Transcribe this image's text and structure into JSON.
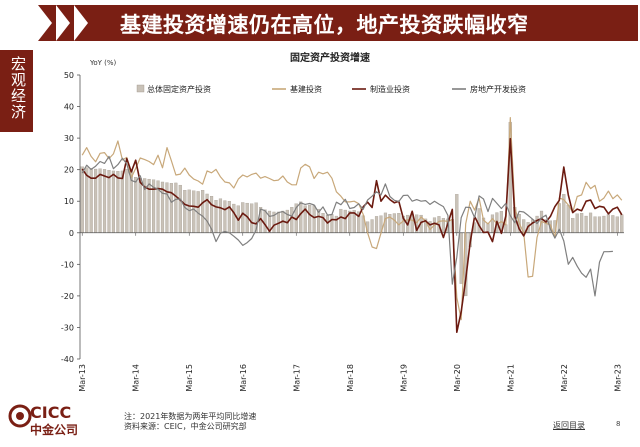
{
  "header": {
    "title": "基建投资增速仍在高位，地产投资跌幅收窄"
  },
  "sidebar": {
    "label": "宏观经济"
  },
  "footer": {
    "note_line1": "注：2021年数据为两年平均同比增速",
    "note_line2": "资料来源：CEIC，中金公司研究部",
    "back_link": "返回目录",
    "page_number": "8"
  },
  "logo": {
    "text": "CICC",
    "subtext": "中金公司"
  },
  "colors": {
    "brand": "#7a1f14",
    "bar": "#c9c2b8",
    "infra": "#c8a87a",
    "manufacturing": "#6b1a10",
    "realestate": "#7f7f7f"
  },
  "chart_data": {
    "type": "bar+line",
    "title": "固定资产投资增速",
    "ylabel": "YoY (%)",
    "ylim": [
      -40,
      50
    ],
    "yticks": [
      -40,
      -30,
      -20,
      -10,
      0,
      10,
      20,
      30,
      40,
      50
    ],
    "xlabels": [
      "Mar-13",
      "Mar-14",
      "Mar-15",
      "Mar-16",
      "Mar-17",
      "Mar-18",
      "Mar-19",
      "Mar-20",
      "Mar-21",
      "Mar-22",
      "Mar-23"
    ],
    "legend": [
      "总体固定资产投资",
      "基建投资",
      "制造业投资",
      "房地产开发投资"
    ],
    "series": [
      {
        "name": "总体固定资产投资",
        "type": "bar",
        "values": [
          20.9,
          20.6,
          20.4,
          20.2,
          20.3,
          20.1,
          19.8,
          19.6,
          19.5,
          19.6,
          20.1,
          19.8,
          17.6,
          17.3,
          17.2,
          17.0,
          16.8,
          16.5,
          16.1,
          15.9,
          15.7,
          15.8,
          15.1,
          13.5,
          13.6,
          13.3,
          13.1,
          13.5,
          12.3,
          11.6,
          10.3,
          10.8,
          10.2,
          10.0,
          9.1,
          8.6,
          9.6,
          9.4,
          9.2,
          9.5,
          8.1,
          7.3,
          6.9,
          6.6,
          6.6,
          6.9,
          7.2,
          8.1,
          9.2,
          9.8,
          8.6,
          8.8,
          8.6,
          7.5,
          6.2,
          5.6,
          5.8,
          5.3,
          7.5,
          7.2,
          6.9,
          7.1,
          6.7,
          5.4,
          3.5,
          4.2,
          5.2,
          5.4,
          6.3,
          5.9,
          6.1,
          6.2,
          5.3,
          5.6,
          5.8,
          5.7,
          5.6,
          4.4,
          3.6,
          4.8,
          5.2,
          4.6,
          4.4,
          4.3,
          12.2,
          -16.1,
          -20.0,
          -4.5,
          3.2,
          7.7,
          4.7,
          2.9,
          5.7,
          6.4,
          6.8,
          2.6,
          35.0,
          8.1,
          5.9,
          4.2,
          3.3,
          4.2,
          5.3,
          6.9,
          4.2,
          3.8,
          3.9,
          9.3,
          12.2,
          8.8,
          4.6,
          6.0,
          6.2,
          5.3,
          6.3,
          5.1,
          5.1,
          5.3,
          5.8,
          5.5,
          5.1,
          5.7
        ],
        "bar_start": 0
      },
      {
        "name": "基建投资",
        "type": "line",
        "values": [
          24.6,
          27.0,
          24.2,
          22.5,
          25.2,
          25.4,
          23.5,
          25.0,
          29.1,
          23.1,
          23.9,
          17.5,
          20.4,
          23.7,
          23.2,
          22.6,
          21.6,
          24.6,
          20.6,
          27.0,
          22.8,
          18.3,
          18.6,
          20.5,
          18.3,
          17.0,
          16.4,
          15.4,
          19.6,
          19.0,
          20.1,
          17.7,
          16.1,
          15.8,
          14.2,
          17.0,
          18.3,
          17.7,
          18.5,
          18.9,
          17.3,
          17.8,
          17.2,
          16.5,
          16.7,
          18.0,
          16.1,
          15.2,
          15.2,
          20.5,
          21.7,
          20.9,
          17.2,
          19.2,
          18.7,
          19.2,
          17.3,
          13.0,
          11.6,
          9.8,
          9.8,
          10.0,
          9.2,
          5.9,
          0.0,
          -4.5,
          -5.0,
          -0.1,
          4.5,
          5.0,
          4.0,
          2.5,
          3.8,
          4.1,
          4.0,
          3.2,
          5.0,
          3.7,
          1.0,
          2.5,
          3.6,
          3.8,
          3.6,
          4.2,
          -20.5,
          -27.5,
          2.8,
          10.0,
          7.2,
          11.0,
          4.0,
          2.8,
          4.5,
          2.8,
          3.5,
          2.5,
          36.5,
          8.0,
          3.0,
          0.0,
          -14.0,
          -13.8,
          -1.5,
          3.6,
          3.0,
          2.5,
          -1.5,
          11.0,
          10.5,
          8.8,
          6.5,
          11.5,
          12.0,
          16.0,
          14.0,
          15.0,
          10.0,
          11.0,
          13.2,
          10.8,
          12.0,
          10.3
        ]
      },
      {
        "name": "制造业投资",
        "type": "line",
        "values": [
          20.2,
          18.2,
          17.3,
          17.3,
          18.5,
          18.0,
          17.5,
          18.5,
          17.4,
          17.2,
          23.5,
          19.3,
          23.0,
          16.0,
          14.5,
          13.8,
          13.8,
          14.0,
          13.8,
          13.0,
          12.7,
          11.6,
          10.4,
          9.0,
          8.5,
          8.4,
          8.1,
          9.5,
          10.5,
          8.9,
          8.2,
          7.9,
          7.3,
          8.2,
          6.4,
          4.0,
          6.2,
          5.1,
          3.2,
          2.8,
          4.5,
          2.6,
          0.5,
          2.4,
          3.0,
          3.7,
          3.2,
          5.0,
          4.2,
          6.0,
          7.5,
          5.8,
          4.8,
          5.2,
          4.8,
          3.1,
          4.2,
          4.1,
          5.0,
          4.5,
          6.3,
          6.3,
          5.2,
          8.2,
          9.7,
          8.0,
          16.5,
          10.0,
          11.9,
          10.5,
          9.5,
          10.0,
          4.6,
          2.5,
          6.8,
          0.8,
          3.3,
          3.8,
          2.5,
          3.0,
          2.5,
          -1.5,
          3.0,
          7.4,
          -31.5,
          -25.0,
          -14.8,
          -3.0,
          5.2,
          2.3,
          0.1,
          0.2,
          -2.8,
          3.6,
          -0.2,
          5.3,
          29.8,
          5.2,
          1.2,
          -1.0,
          2.0,
          3.1,
          3.9,
          4.5,
          3.4,
          5.2,
          8.3,
          10.3,
          20.8,
          12.0,
          6.4,
          7.5,
          7.0,
          10.0,
          10.4,
          7.7,
          8.4,
          8.1,
          6.0,
          7.5,
          8.1,
          5.7
        ]
      },
      {
        "name": "房地产开发投资",
        "type": "line",
        "values": [
          18.9,
          21.4,
          20.1,
          21.1,
          22.6,
          22.0,
          24.2,
          20.3,
          21.6,
          23.6,
          21.8,
          16.6,
          16.1,
          18.1,
          13.7,
          15.5,
          14.4,
          13.8,
          12.5,
          12.3,
          9.7,
          10.6,
          10.7,
          8.0,
          7.0,
          7.5,
          6.2,
          5.3,
          3.7,
          1.2,
          -2.8,
          -0.1,
          0.4,
          0.0,
          -1.1,
          -2.3,
          -4.0,
          -3.1,
          -1.8,
          0.9,
          7.5,
          7.0,
          5.2,
          5.5,
          6.4,
          6.7,
          5.8,
          5.3,
          8.0,
          9.5,
          9.0,
          9.3,
          8.8,
          6.5,
          8.2,
          5.6,
          5.8,
          9.7,
          8.9,
          10.6,
          7.7,
          8.0,
          9.2,
          7.4,
          10.4,
          11.6,
          13.0,
          12.0,
          15.5,
          11.5,
          10.3,
          9.9,
          11.8,
          11.9,
          10.0,
          10.5,
          10.0,
          10.2,
          9.0,
          10.0,
          9.1,
          8.3,
          5.5,
          -16.3,
          -7.7,
          4.8,
          8.1,
          8.0,
          4.8,
          11.7,
          10.7,
          6.7,
          10.9,
          9.3,
          7.7,
          9.3,
          5.4,
          3.2,
          6.8,
          6.6,
          5.5,
          4.3,
          2.9,
          4.7,
          5.6,
          1.2,
          -1.7,
          1.1,
          -2.6,
          -10.0,
          -7.8,
          -10.6,
          -12.8,
          -14.1,
          -11.5,
          -20.0,
          -9.3,
          -6.0,
          -6.0,
          -5.9
        ]
      }
    ]
  }
}
